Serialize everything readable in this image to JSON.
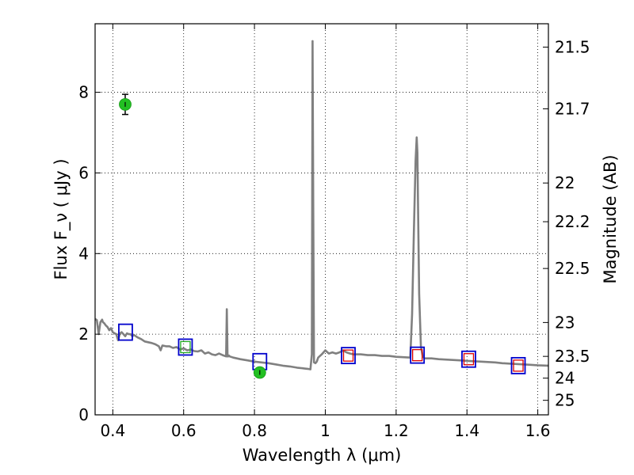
{
  "chart_data": {
    "type": "line",
    "xlabel": "Wavelength  λ (μm)",
    "ylabel": "Flux  F_ν  ( μJy )",
    "y2label": "Magnitude (AB)",
    "xlim": [
      0.35,
      1.63
    ],
    "ylim": [
      0,
      9.7
    ],
    "grid": true,
    "x_ticks": [
      0.4,
      0.6,
      0.8,
      1.0,
      1.2,
      1.4,
      1.6
    ],
    "x_tick_labels": [
      "0.4",
      "0.6",
      "0.8",
      "1",
      "1.2",
      "1.4",
      "1.6"
    ],
    "y_ticks": [
      0,
      2,
      4,
      6,
      8
    ],
    "y_tick_labels": [
      "0",
      "2",
      "4",
      "6",
      "8"
    ],
    "y2_ticks": [
      {
        "label": "21.5",
        "flux": 9.12
      },
      {
        "label": "21.7",
        "flux": 7.59
      },
      {
        "label": "22",
        "flux": 5.75
      },
      {
        "label": "22.2",
        "flux": 4.79
      },
      {
        "label": "22.5",
        "flux": 3.63
      },
      {
        "label": "23",
        "flux": 2.29
      },
      {
        "label": "23.5",
        "flux": 1.45
      },
      {
        "label": "24",
        "flux": 0.91
      },
      {
        "label": "25",
        "flux": 0.36
      }
    ],
    "colors": {
      "model": "#808080",
      "observed": "#22c022",
      "model_box": "#0000cc",
      "box_red": "#dd0000",
      "box_green": "#22aa22"
    },
    "model_sed": {
      "x": [
        0.35,
        0.355,
        0.36,
        0.365,
        0.37,
        0.372,
        0.375,
        0.38,
        0.385,
        0.39,
        0.395,
        0.4,
        0.405,
        0.41,
        0.415,
        0.42,
        0.425,
        0.43,
        0.435,
        0.44,
        0.445,
        0.45,
        0.455,
        0.46,
        0.47,
        0.48,
        0.49,
        0.5,
        0.51,
        0.52,
        0.53,
        0.535,
        0.54,
        0.55,
        0.56,
        0.57,
        0.58,
        0.59,
        0.6,
        0.61,
        0.62,
        0.63,
        0.64,
        0.65,
        0.66,
        0.67,
        0.68,
        0.69,
        0.7,
        0.71,
        0.72,
        0.722,
        0.724,
        0.726,
        0.728,
        0.73,
        0.74,
        0.75,
        0.76,
        0.78,
        0.8,
        0.82,
        0.84,
        0.86,
        0.88,
        0.9,
        0.92,
        0.94,
        0.95,
        0.958,
        0.962,
        0.964,
        0.966,
        0.968,
        0.972,
        0.976,
        0.98,
        0.99,
        1.0,
        1.01,
        1.02,
        1.03,
        1.04,
        1.05,
        1.06,
        1.07,
        1.08,
        1.1,
        1.12,
        1.14,
        1.16,
        1.18,
        1.2,
        1.22,
        1.24,
        1.245,
        1.25,
        1.255,
        1.258,
        1.26,
        1.262,
        1.265,
        1.27,
        1.275,
        1.28,
        1.3,
        1.32,
        1.34,
        1.36,
        1.38,
        1.4,
        1.42,
        1.44,
        1.46,
        1.48,
        1.5,
        1.52,
        1.54,
        1.56,
        1.58,
        1.6,
        1.63
      ],
      "y": [
        2.38,
        2.35,
        2.0,
        2.3,
        2.36,
        2.3,
        2.28,
        2.22,
        2.18,
        2.1,
        2.15,
        2.05,
        2.02,
        2.0,
        1.85,
        2.02,
        2.05,
        2.0,
        1.95,
        2.02,
        2.0,
        2.0,
        1.95,
        1.98,
        1.92,
        1.88,
        1.82,
        1.8,
        1.78,
        1.75,
        1.7,
        1.6,
        1.72,
        1.7,
        1.7,
        1.66,
        1.68,
        1.62,
        1.65,
        1.6,
        1.62,
        1.58,
        1.57,
        1.6,
        1.52,
        1.55,
        1.5,
        1.48,
        1.52,
        1.48,
        1.45,
        2.62,
        1.45,
        1.45,
        1.47,
        1.45,
        1.42,
        1.4,
        1.38,
        1.35,
        1.32,
        1.3,
        1.28,
        1.25,
        1.22,
        1.2,
        1.17,
        1.15,
        1.14,
        1.13,
        1.5,
        9.27,
        5.0,
        1.3,
        1.28,
        1.32,
        1.42,
        1.5,
        1.6,
        1.52,
        1.55,
        1.52,
        1.55,
        1.6,
        1.55,
        1.52,
        1.5,
        1.5,
        1.48,
        1.48,
        1.46,
        1.46,
        1.44,
        1.43,
        1.42,
        2.5,
        4.5,
        6.3,
        6.88,
        6.5,
        5.0,
        3.0,
        1.7,
        1.45,
        1.4,
        1.4,
        1.38,
        1.37,
        1.36,
        1.35,
        1.34,
        1.33,
        1.32,
        1.31,
        1.3,
        1.28,
        1.27,
        1.26,
        1.25,
        1.24,
        1.23,
        1.22
      ]
    },
    "model_photometry": [
      {
        "x": 0.436,
        "y": 2.05,
        "inner": "none"
      },
      {
        "x": 0.605,
        "y": 1.68,
        "inner": "green"
      },
      {
        "x": 0.815,
        "y": 1.32,
        "inner": "none"
      },
      {
        "x": 1.065,
        "y": 1.47,
        "inner": "red"
      },
      {
        "x": 1.26,
        "y": 1.48,
        "inner": "red"
      },
      {
        "x": 1.405,
        "y": 1.38,
        "inner": "red"
      },
      {
        "x": 1.545,
        "y": 1.22,
        "inner": "red"
      }
    ],
    "observed_photometry": [
      {
        "x": 0.435,
        "y": 7.7,
        "err": 0.25
      },
      {
        "x": 0.815,
        "y": 1.05,
        "err": 0.07
      }
    ]
  }
}
